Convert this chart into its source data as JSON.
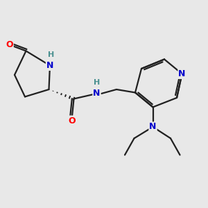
{
  "bg_color": "#e8e8e8",
  "bond_color": "#202020",
  "atom_colors": {
    "O": "#ff0000",
    "N": "#0000cc",
    "H": "#4a9090",
    "C": "#202020"
  }
}
